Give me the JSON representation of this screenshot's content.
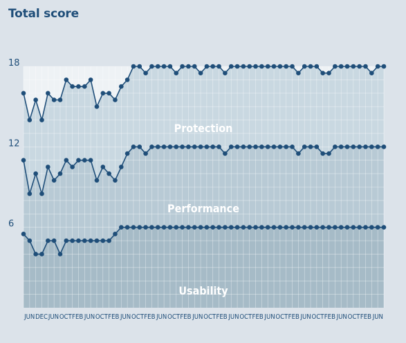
{
  "chart_data": {
    "type": "line",
    "title": "Total score",
    "xlabel": "",
    "ylabel": "",
    "ylim": [
      0,
      18
    ],
    "yticks": [
      6,
      12,
      18
    ],
    "x_ticks": [
      "JUN",
      "DEC",
      "JUN",
      "OCT",
      "FEB",
      "JUN",
      "OCT",
      "FEB",
      "JUN",
      "OCT",
      "FEB",
      "JUN",
      "OCT",
      "FEB",
      "JUN",
      "OCT",
      "FEB",
      "JUN",
      "OCT",
      "FEB",
      "JUN",
      "OCT",
      "FEB",
      "JUN",
      "OCT",
      "FEB",
      "JUN",
      "OCT",
      "FEB",
      "JUN"
    ],
    "band_labels": [
      "Protection",
      "Performance",
      "Usability"
    ],
    "series": [
      {
        "values": [
          5.5,
          5.0,
          4.0,
          4.0,
          5.0,
          5.0,
          4.0,
          5.0,
          5.0,
          5.0,
          5.0,
          5.0,
          5.0,
          5.0,
          5.0,
          5.5,
          6.0,
          6.0,
          6.0,
          6.0,
          6.0,
          6.0,
          6.0,
          6.0,
          6.0,
          6.0,
          6.0,
          6.0,
          6.0,
          6.0,
          6.0,
          6.0,
          6.0,
          6.0,
          6.0,
          6.0,
          6.0,
          6.0,
          6.0,
          6.0,
          6.0,
          6.0,
          6.0,
          6.0,
          6.0,
          6.0,
          6.0,
          6.0,
          6.0,
          6.0,
          6.0,
          6.0,
          6.0,
          6.0,
          6.0,
          6.0,
          6.0,
          6.0,
          6.0,
          6.0
        ]
      },
      {
        "values": [
          11.0,
          8.5,
          10.0,
          8.5,
          10.5,
          9.5,
          10.0,
          11.0,
          10.5,
          11.0,
          11.0,
          11.0,
          9.5,
          10.5,
          10.0,
          9.5,
          10.5,
          11.5,
          12.0,
          12.0,
          11.5,
          12.0,
          12.0,
          12.0,
          12.0,
          12.0,
          12.0,
          12.0,
          12.0,
          12.0,
          12.0,
          12.0,
          12.0,
          11.5,
          12.0,
          12.0,
          12.0,
          12.0,
          12.0,
          12.0,
          12.0,
          12.0,
          12.0,
          12.0,
          12.0,
          11.5,
          12.0,
          12.0,
          12.0,
          11.5,
          11.5,
          12.0,
          12.0,
          12.0,
          12.0,
          12.0,
          12.0,
          12.0,
          12.0,
          12.0
        ]
      },
      {
        "values": [
          16.0,
          14.0,
          15.5,
          14.0,
          16.0,
          15.5,
          15.5,
          17.0,
          16.5,
          16.5,
          16.5,
          17.0,
          15.0,
          16.0,
          16.0,
          15.5,
          16.5,
          17.0,
          18.0,
          18.0,
          17.5,
          18.0,
          18.0,
          18.0,
          18.0,
          17.5,
          18.0,
          18.0,
          18.0,
          17.5,
          18.0,
          18.0,
          18.0,
          17.5,
          18.0,
          18.0,
          18.0,
          18.0,
          18.0,
          18.0,
          18.0,
          18.0,
          18.0,
          18.0,
          18.0,
          17.5,
          18.0,
          18.0,
          18.0,
          17.5,
          17.5,
          18.0,
          18.0,
          18.0,
          18.0,
          18.0,
          18.0,
          17.5,
          18.0,
          18.0
        ]
      }
    ],
    "colors": {
      "line": "#1f4e79",
      "marker": "#1f4e79",
      "band_top": "#c9d8e1",
      "band_mid": "#b8cad5",
      "band_bottom": "#a6bbc7",
      "grid": "#ffffff",
      "text": "#ffffff",
      "title": "#1f4e79",
      "axis_text": "#1f4e79"
    }
  }
}
